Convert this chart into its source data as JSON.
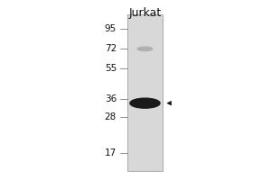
{
  "title": "Jurkat",
  "mw_markers": [
    95,
    72,
    55,
    36,
    28,
    17
  ],
  "band_mw": 34,
  "faint_band_mw": 72,
  "bg_color": "#ffffff",
  "outer_bg": "#ffffff",
  "lane_color": "#d8d8d8",
  "lane_edge_color": "#aaaaaa",
  "band_color": "#1a1a1a",
  "faint_band_color": "#b0b0b0",
  "arrow_color": "#111111",
  "text_color": "#111111",
  "title_fontsize": 9,
  "marker_fontsize": 7.5,
  "fig_width": 3.0,
  "fig_height": 2.0,
  "dpi": 100,
  "mw_log_min": 14,
  "mw_log_max": 105
}
